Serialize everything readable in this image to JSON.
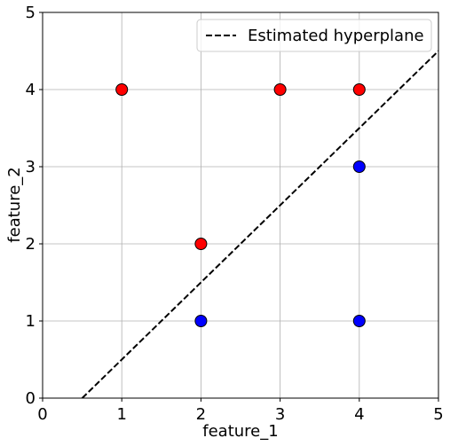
{
  "chart_data": {
    "type": "scatter",
    "title": "",
    "xlabel": "feature_1",
    "ylabel": "feature_2",
    "xlim": [
      0,
      5
    ],
    "ylim": [
      0,
      5
    ],
    "xticks": [
      "0",
      "1",
      "2",
      "3",
      "4",
      "5"
    ],
    "yticks": [
      "0",
      "1",
      "2",
      "3",
      "4",
      "5"
    ],
    "grid": true,
    "legend": {
      "placement": "top-right",
      "entries": [
        "Estimated hyperplane"
      ]
    },
    "series": [
      {
        "type": "scatter",
        "color": "#ff0000",
        "points": [
          [
            1,
            4
          ],
          [
            3,
            4
          ],
          [
            4,
            4
          ],
          [
            2,
            2
          ]
        ]
      },
      {
        "type": "scatter",
        "color": "#0000ff",
        "points": [
          [
            4,
            3
          ],
          [
            2,
            1
          ],
          [
            4,
            1
          ]
        ]
      },
      {
        "name": "Estimated hyperplane",
        "type": "line",
        "style": "dashed",
        "color": "#000000",
        "points": [
          [
            0.5,
            0
          ],
          [
            5,
            4.5
          ]
        ]
      }
    ]
  }
}
